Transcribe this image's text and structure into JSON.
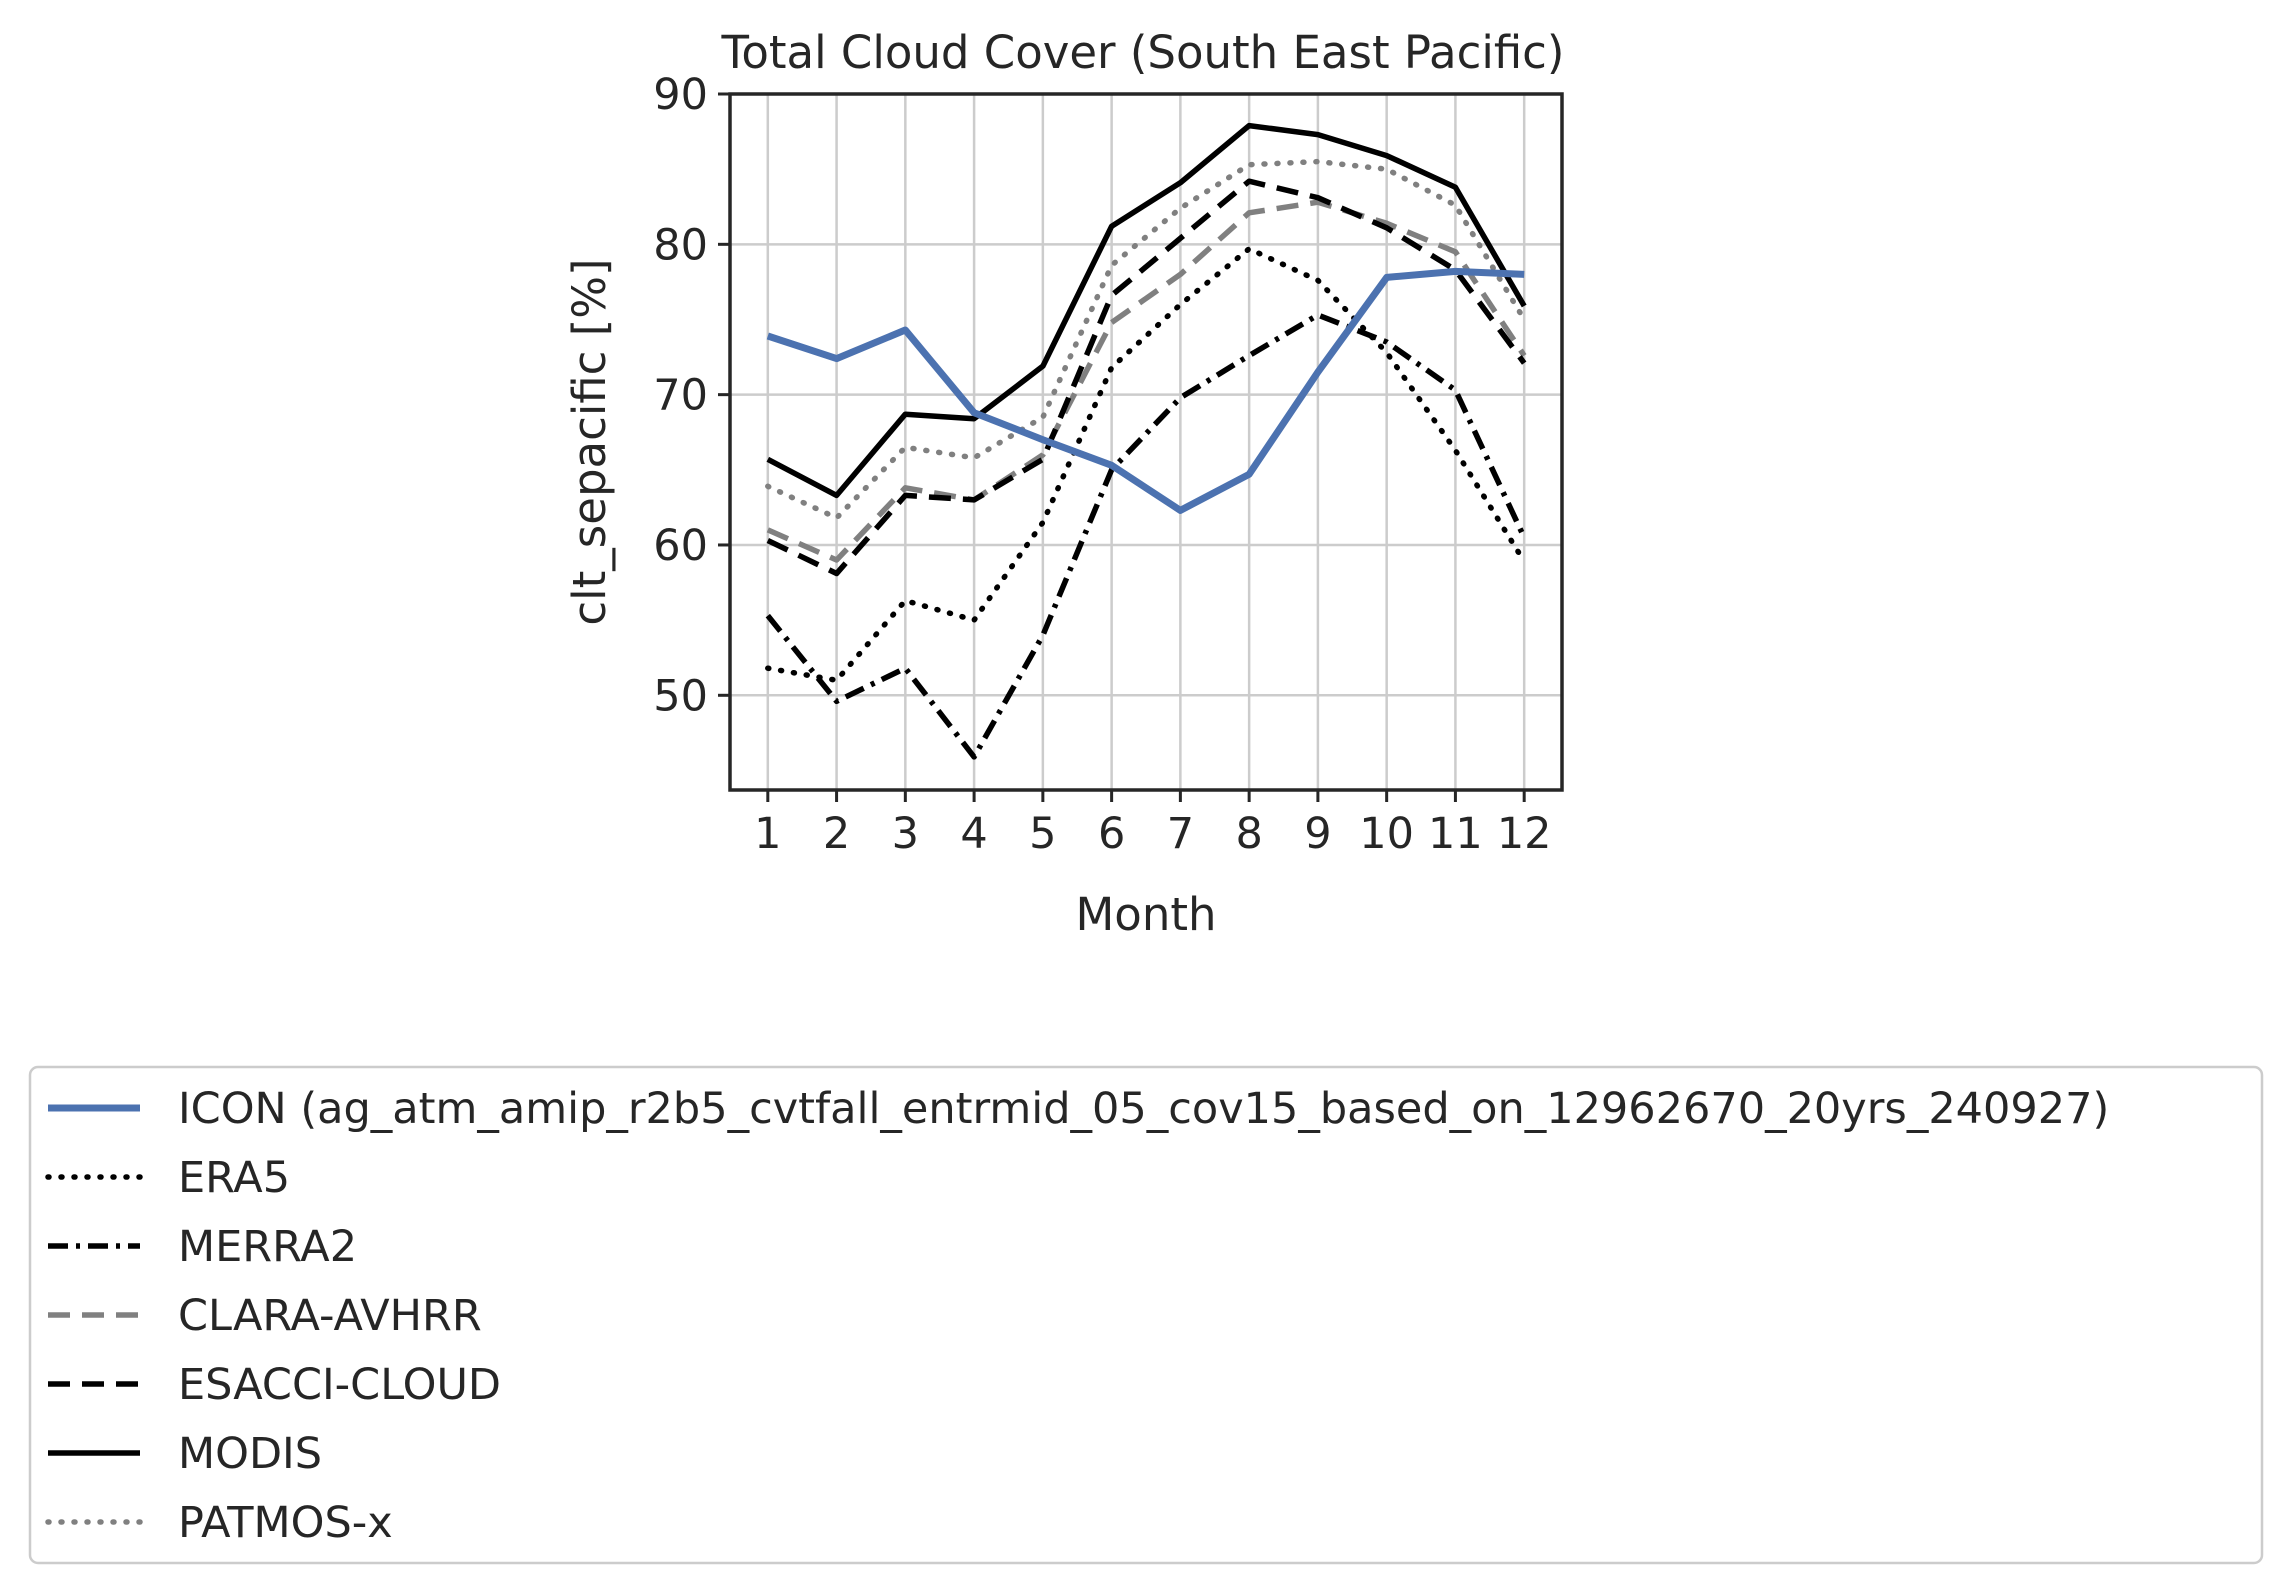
{
  "chart_data": {
    "type": "line",
    "title": "Total Cloud Cover (South East Pacific)",
    "xlabel": "Month",
    "ylabel": "clt_sepacific [%]",
    "x": [
      1,
      2,
      3,
      4,
      5,
      6,
      7,
      8,
      9,
      10,
      11,
      12
    ],
    "xticks": [
      "1",
      "2",
      "3",
      "4",
      "5",
      "6",
      "7",
      "8",
      "9",
      "10",
      "11",
      "12"
    ],
    "yticks": [
      50,
      60,
      70,
      80,
      90
    ],
    "xlim": [
      0.45,
      12.55
    ],
    "ylim": [
      43.7,
      90
    ],
    "grid": true,
    "legend_position": "below",
    "series": [
      {
        "name": "ICON (ag_atm_amip_r2b5_cvtfall_entrmid_05_cov15_based_on_12962670_20yrs_240927)",
        "color": "#4c72b0",
        "style": "solid",
        "values": [
          73.9,
          72.4,
          74.3,
          68.8,
          67.0,
          65.3,
          62.3,
          64.7,
          71.5,
          77.8,
          78.2,
          78.0
        ]
      },
      {
        "name": "ERA5",
        "color": "#000000",
        "style": "dotted",
        "values": [
          51.8,
          51.0,
          56.3,
          55.0,
          61.5,
          71.8,
          76.0,
          79.7,
          77.6,
          72.8,
          66.3,
          58.9
        ]
      },
      {
        "name": "MERRA2",
        "color": "#000000",
        "style": "dashdot",
        "values": [
          55.3,
          49.6,
          51.8,
          45.9,
          54.0,
          65.0,
          69.8,
          72.6,
          75.3,
          73.5,
          70.3,
          60.5
        ]
      },
      {
        "name": "CLARA-AVHRR",
        "color": "#808080",
        "style": "dashed",
        "values": [
          61.0,
          59.0,
          63.8,
          63.0,
          66.0,
          74.8,
          78.0,
          82.1,
          82.8,
          81.4,
          79.5,
          72.6
        ]
      },
      {
        "name": "ESACCI-CLOUD",
        "color": "#000000",
        "style": "dashed",
        "values": [
          60.3,
          58.1,
          63.3,
          63.0,
          65.7,
          76.6,
          80.4,
          84.2,
          83.1,
          81.1,
          78.3,
          72.1
        ]
      },
      {
        "name": "MODIS",
        "color": "#000000",
        "style": "solid",
        "values": [
          65.7,
          63.3,
          68.7,
          68.4,
          71.9,
          81.2,
          84.1,
          87.9,
          87.3,
          85.9,
          83.8,
          75.9
        ]
      },
      {
        "name": "PATMOS-x",
        "color": "#808080",
        "style": "dotted",
        "values": [
          63.9,
          61.8,
          66.5,
          65.8,
          68.5,
          78.6,
          82.4,
          85.3,
          85.5,
          85.0,
          82.6,
          75.0
        ]
      }
    ]
  }
}
